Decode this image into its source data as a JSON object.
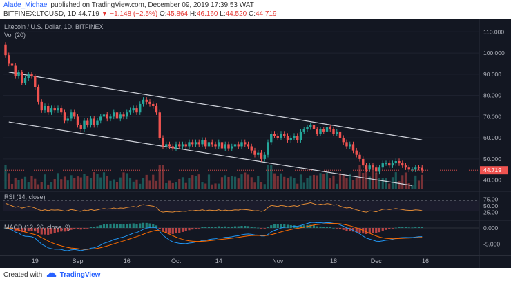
{
  "header": {
    "author": "Alade_Michael",
    "published_text": "published on TradingView.com, December 09, 2019 17:39:53 WAT",
    "symbol_line": "BITFINEX:LTCUSD, 1D",
    "last": "44.719",
    "change": "▼ −1.148 (−2.5%)",
    "o_label": "O:",
    "o_value": "45.864",
    "h_label": "H:",
    "h_value": "46.160",
    "l_label": "L:",
    "l_value": "44.520",
    "c_label": "C:",
    "c_value": "44.719"
  },
  "footer": {
    "created_with": "Created with",
    "brand": "TradingView"
  },
  "colors": {
    "background": "#131722",
    "up": "#26a69a",
    "down": "#ef5350",
    "channel": "#d1d4dc",
    "rsi": "#e08a35",
    "macd": "#2196f3",
    "signal": "#ff6d00",
    "text": "#b2b5be"
  },
  "chart_data": {
    "type": "candlestick",
    "title": "Litecoin / U.S. Dollar, 1D, BITFINEX",
    "volume_label": "Vol (20)",
    "price_axis": {
      "ticks": [
        "110.000",
        "100.000",
        "90.000",
        "80.000",
        "70.000",
        "60.000",
        "50.000",
        "40.000"
      ],
      "range": [
        36,
        114
      ]
    },
    "time_axis": {
      "ticks": [
        "19",
        "Sep",
        "16",
        "Oct",
        "14",
        "Nov",
        "18",
        "Dec",
        "16"
      ]
    },
    "last_price_label": "44.719",
    "channel_lines": [
      {
        "from": [
          "2019-08-11",
          91
        ],
        "to": [
          "2019-12-15",
          59
        ]
      },
      {
        "from": [
          "2019-08-11",
          67.5
        ],
        "to": [
          "2019-12-12",
          37.5
        ]
      }
    ],
    "closes": [
      99,
      95,
      94,
      89,
      91,
      86,
      88,
      90,
      89,
      84,
      77,
      73,
      75,
      72,
      74,
      73,
      74,
      72,
      68,
      69,
      72,
      70,
      66,
      64,
      68,
      66,
      69,
      66,
      68,
      70,
      71,
      69,
      70,
      72,
      69,
      71,
      70,
      72,
      73,
      74,
      72,
      76,
      78,
      77,
      76,
      75,
      72,
      60,
      56,
      57,
      56,
      55,
      57,
      56,
      57,
      56,
      58,
      57,
      58,
      57,
      59,
      56,
      58,
      57,
      56,
      58,
      55,
      57,
      55,
      56,
      57,
      56,
      58,
      57,
      56,
      54,
      52,
      53,
      50,
      52,
      58,
      62,
      61,
      60,
      62,
      61,
      59,
      60,
      61,
      59,
      63,
      64,
      65,
      66,
      64,
      62,
      64,
      63,
      65,
      64,
      62,
      63,
      60,
      58,
      56,
      57,
      54,
      52,
      50,
      47,
      45,
      47,
      46,
      44,
      46,
      48,
      48,
      47,
      48,
      49,
      48,
      47,
      46,
      45,
      45,
      46,
      45.86,
      44.72
    ],
    "rsi": {
      "label": "RSI (14, close)",
      "ticks": [
        "75.00",
        "50.00",
        "25.00"
      ],
      "values": [
        60,
        55,
        50,
        45,
        48,
        42,
        45,
        48,
        46,
        42,
        36,
        32,
        35,
        32,
        35,
        34,
        35,
        33,
        30,
        32,
        36,
        34,
        31,
        29,
        34,
        32,
        36,
        33,
        35,
        38,
        40,
        38,
        39,
        42,
        39,
        42,
        41,
        44,
        46,
        48,
        45,
        52,
        55,
        53,
        51,
        49,
        45,
        30,
        26,
        28,
        27,
        26,
        29,
        28,
        30,
        29,
        32,
        31,
        33,
        32,
        35,
        31,
        34,
        33,
        32,
        35,
        31,
        34,
        32,
        33,
        35,
        34,
        37,
        36,
        35,
        33,
        31,
        32,
        29,
        32,
        44,
        52,
        50,
        48,
        52,
        50,
        47,
        49,
        51,
        48,
        54,
        57,
        59,
        62,
        58,
        54,
        57,
        55,
        59,
        57,
        53,
        55,
        49,
        45,
        42,
        44,
        39,
        35,
        32,
        28,
        26,
        31,
        30,
        27,
        32,
        37,
        38,
        36,
        38,
        40,
        38,
        36,
        34,
        33,
        33,
        35,
        34,
        32
      ]
    },
    "macd": {
      "label": "MACD (12, 26, close, 9)",
      "ticks": [
        "0.000",
        "-5.000"
      ]
    }
  }
}
